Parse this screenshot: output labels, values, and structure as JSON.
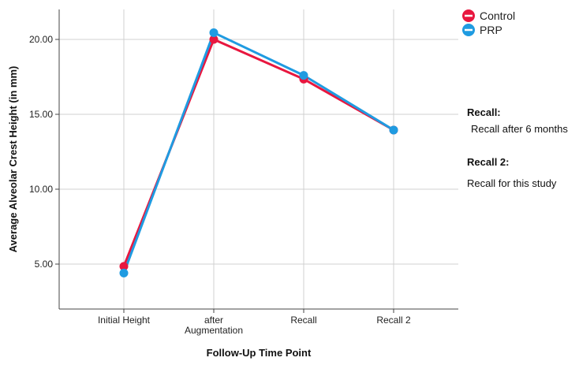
{
  "chart_data": {
    "type": "line",
    "xlabel": "Follow-Up Time Point",
    "ylabel": "Average Alveolar Crest Height (in mm)",
    "categories": [
      "Initial Height",
      "after Augmentation",
      "Recall",
      "Recall 2"
    ],
    "ylim": [
      2.0,
      22.0
    ],
    "yticks": [
      "5.00",
      "10.00",
      "15.00",
      "20.00"
    ],
    "grid": true,
    "legend_position": "top-right",
    "series": [
      {
        "name": "Control",
        "color": "#e8173f",
        "values": [
          4.85,
          20.0,
          17.35,
          13.95
        ]
      },
      {
        "name": "PRP",
        "color": "#1f9be1",
        "values": [
          4.4,
          20.45,
          17.6,
          13.95
        ]
      }
    ]
  },
  "notes": [
    {
      "title": "Recall:",
      "text": "Recall after 6 months"
    },
    {
      "title": "Recall 2:",
      "text": "Recall for this study"
    }
  ]
}
